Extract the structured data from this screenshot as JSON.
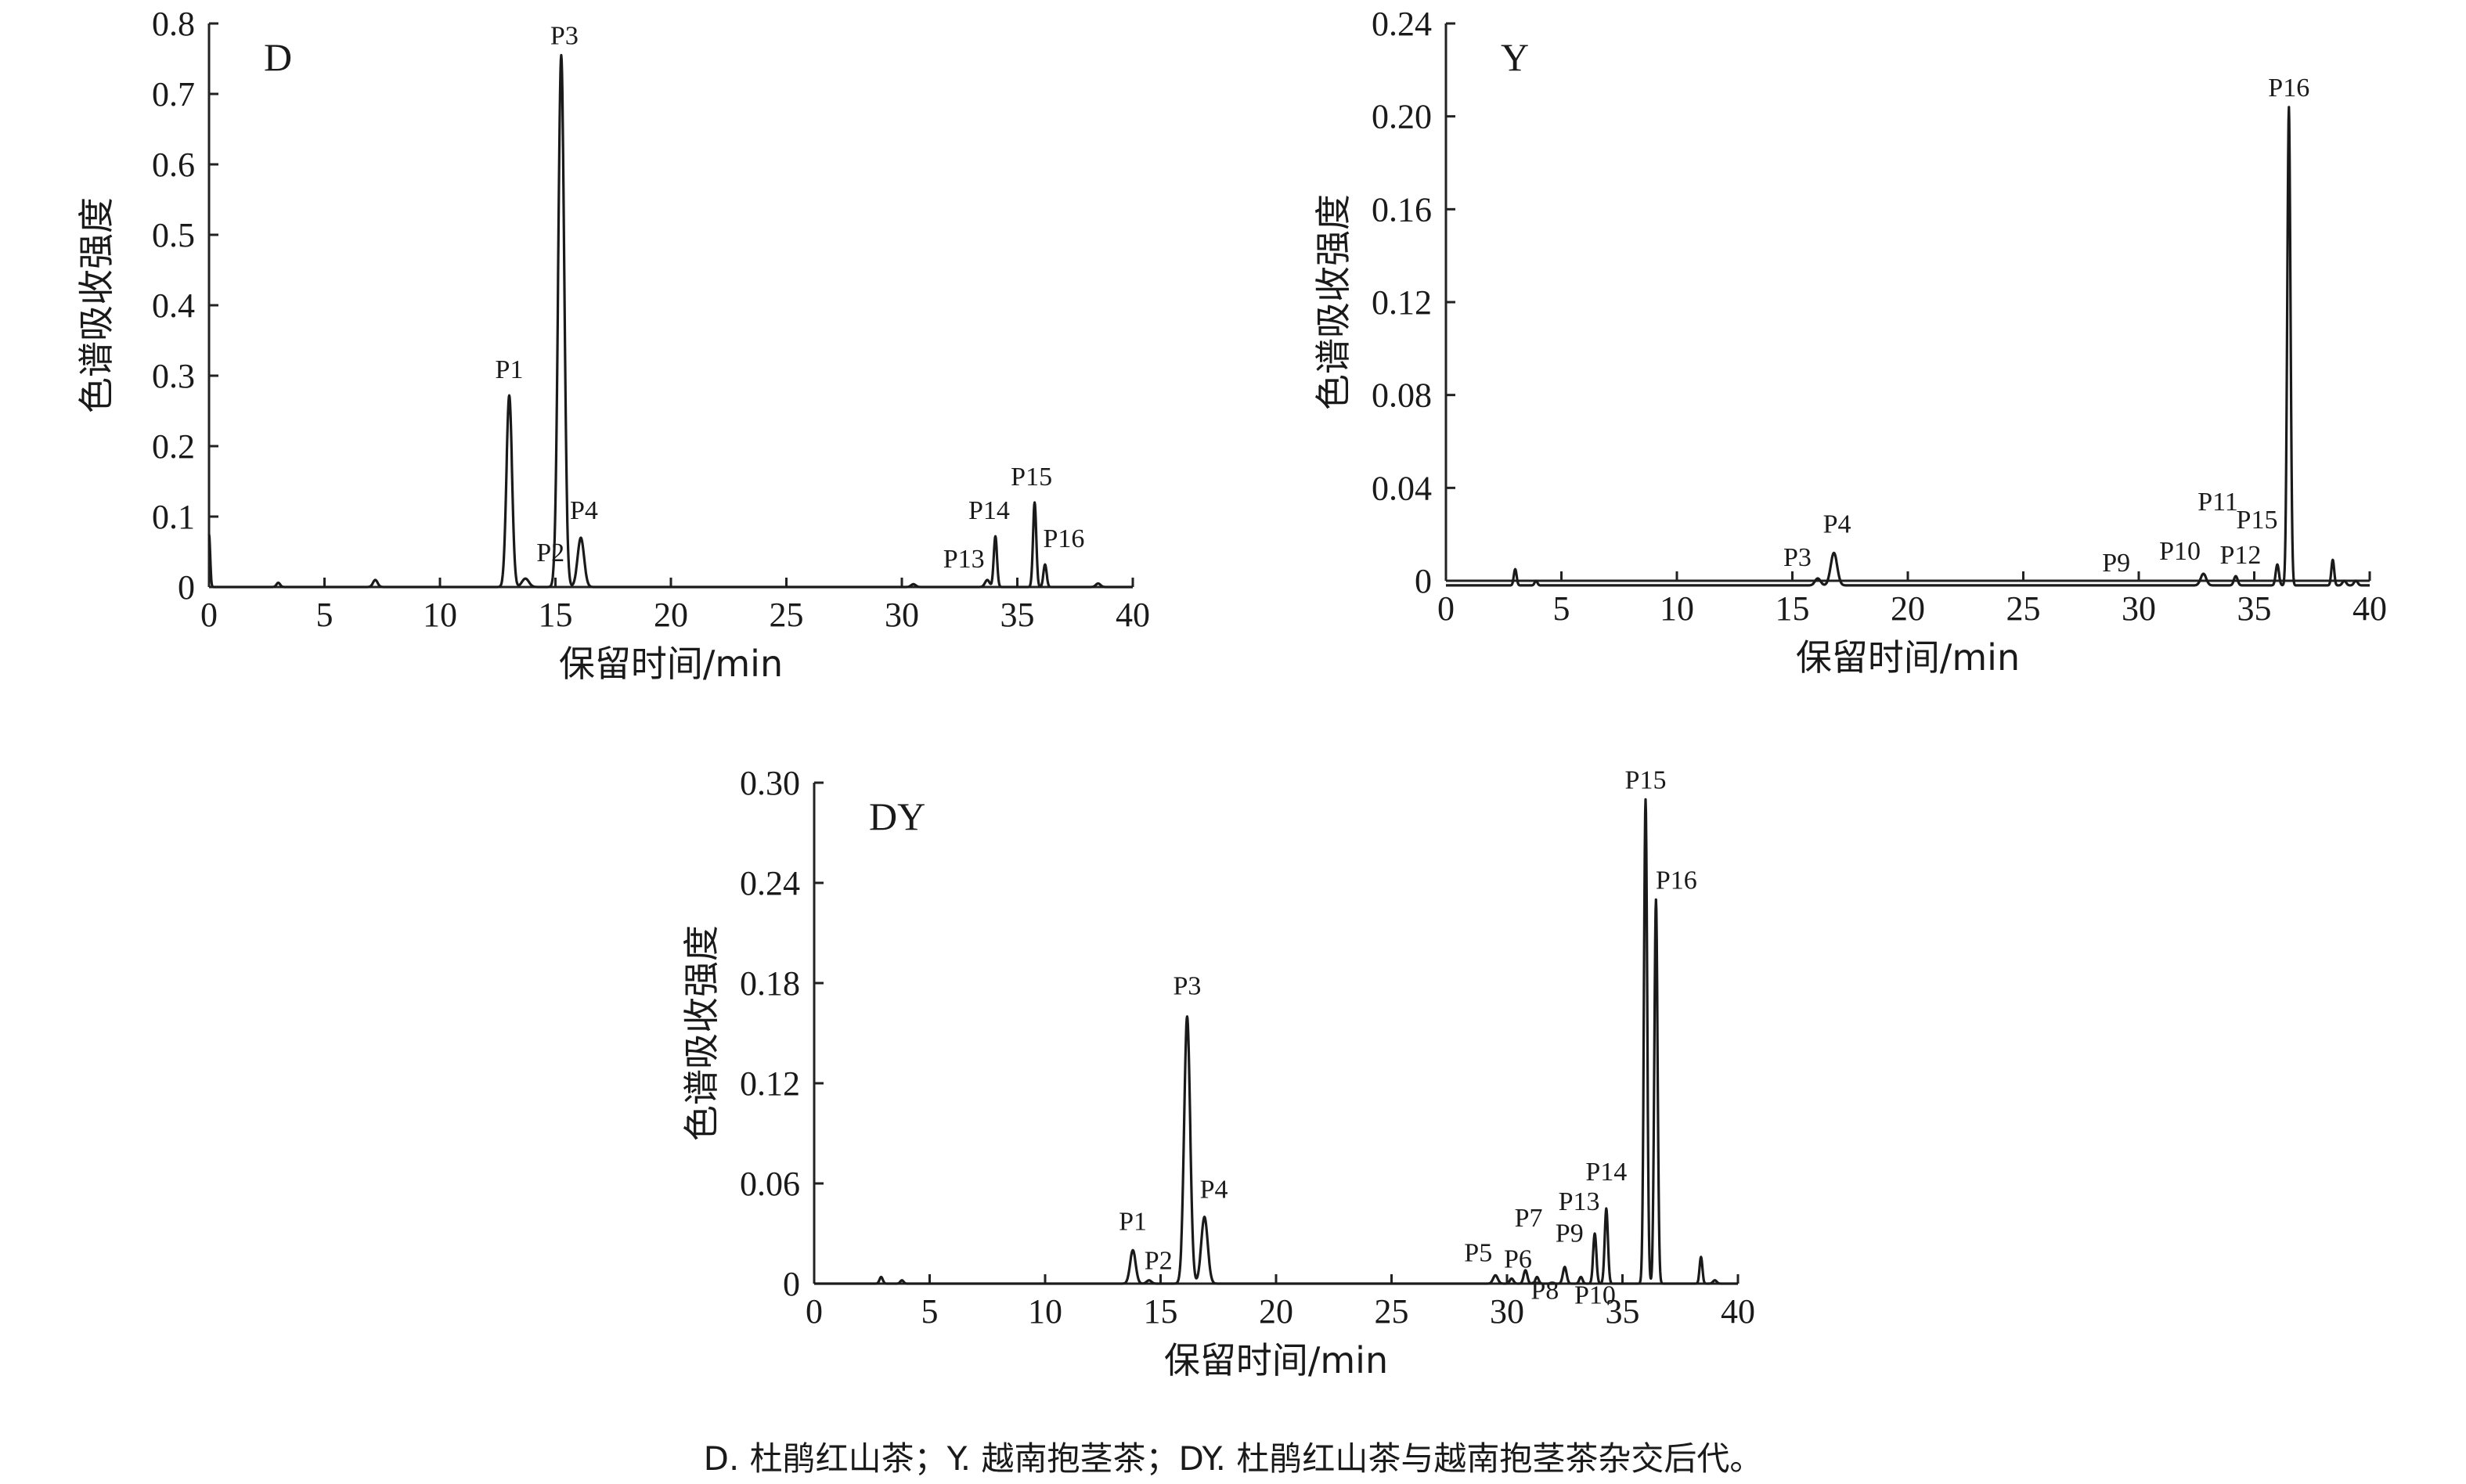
{
  "caption": "D. 杜鹃红山茶；Y. 越南抱茎茶；DY. 杜鹃红山茶与越南抱茎茶杂交后代。",
  "chart_data": [
    {
      "type": "line",
      "panel_label": "D",
      "xlabel": "保留时间/min",
      "ylabel": "色谱吸收强度",
      "xlim": [
        0,
        40
      ],
      "ylim": [
        0,
        0.8
      ],
      "xticks": [
        "0",
        "5",
        "10",
        "15",
        "20",
        "25",
        "30",
        "35",
        "40"
      ],
      "yticks": [
        "0",
        "0.1",
        "0.2",
        "0.3",
        "0.4",
        "0.5",
        "0.6",
        "0.7",
        "0.8"
      ],
      "baseline": 0,
      "peaks": [
        {
          "label": "P1",
          "x": 13.0,
          "y": 0.272,
          "w": 0.12
        },
        {
          "label": "P2",
          "x": 13.7,
          "y": 0.012,
          "w": 0.15
        },
        {
          "label": "P3",
          "x": 15.25,
          "y": 0.755,
          "w": 0.13
        },
        {
          "label": "P4",
          "x": 16.1,
          "y": 0.07,
          "w": 0.14
        },
        {
          "label": "P13",
          "x": 33.7,
          "y": 0.01,
          "w": 0.1
        },
        {
          "label": "P14",
          "x": 34.05,
          "y": 0.072,
          "w": 0.07
        },
        {
          "label": "P15",
          "x": 35.75,
          "y": 0.12,
          "w": 0.07
        },
        {
          "label": "P16",
          "x": 36.2,
          "y": 0.032,
          "w": 0.07
        }
      ],
      "minor_peaks": [
        {
          "x": 0.0,
          "y": 0.075,
          "w": 0.05
        },
        {
          "x": 3.0,
          "y": 0.006,
          "w": 0.08
        },
        {
          "x": 7.2,
          "y": 0.01,
          "w": 0.1
        },
        {
          "x": 30.5,
          "y": 0.004,
          "w": 0.1
        },
        {
          "x": 38.5,
          "y": 0.005,
          "w": 0.1
        }
      ]
    },
    {
      "type": "line",
      "panel_label": "Y",
      "xlabel": "保留时间/min",
      "ylabel": "色谱吸收强度",
      "xlim": [
        0,
        40
      ],
      "ylim": [
        0,
        0.24
      ],
      "xticks": [
        "0",
        "5",
        "10",
        "15",
        "20",
        "25",
        "30",
        "35",
        "40"
      ],
      "yticks": [
        "0",
        "0.04",
        "0.08",
        "0.12",
        "0.16",
        "0.20",
        "0.24"
      ],
      "baseline": -0.002,
      "peaks": [
        {
          "label": "P3",
          "x": 16.1,
          "y": 0.003,
          "w": 0.12
        },
        {
          "label": "P4",
          "x": 16.8,
          "y": 0.014,
          "w": 0.14
        },
        {
          "label": "P9",
          "x": 29.7,
          "y": 0.0,
          "w": 0.1
        },
        {
          "label": "P10",
          "x": 32.8,
          "y": 0.005,
          "w": 0.12
        },
        {
          "label": "P11",
          "x": 33.9,
          "y": 0.0,
          "w": 0.1
        },
        {
          "label": "P12",
          "x": 34.2,
          "y": 0.004,
          "w": 0.08
        },
        {
          "label": "P15",
          "x": 36.0,
          "y": 0.009,
          "w": 0.07
        },
        {
          "label": "P16",
          "x": 36.5,
          "y": 0.206,
          "w": 0.07
        }
      ],
      "minor_peaks": [
        {
          "x": 3.0,
          "y": 0.007,
          "w": 0.06
        },
        {
          "x": 3.9,
          "y": 0.002,
          "w": 0.06
        },
        {
          "x": 38.4,
          "y": 0.011,
          "w": 0.06
        },
        {
          "x": 38.9,
          "y": 0.002,
          "w": 0.08
        },
        {
          "x": 39.4,
          "y": 0.002,
          "w": 0.08
        }
      ]
    },
    {
      "type": "line",
      "panel_label": "DY",
      "xlabel": "保留时间/min",
      "ylabel": "色谱吸收强度",
      "xlim": [
        0,
        40
      ],
      "ylim": [
        0,
        0.3
      ],
      "xticks": [
        "0",
        "5",
        "10",
        "15",
        "20",
        "25",
        "30",
        "35",
        "40"
      ],
      "yticks": [
        "0",
        "0.06",
        "0.12",
        "0.18",
        "0.24",
        "0.30"
      ],
      "baseline": 0,
      "peaks": [
        {
          "label": "P1",
          "x": 13.8,
          "y": 0.02,
          "w": 0.12
        },
        {
          "label": "P2",
          "x": 14.5,
          "y": 0.002,
          "w": 0.1
        },
        {
          "label": "P3",
          "x": 16.15,
          "y": 0.16,
          "w": 0.13
        },
        {
          "label": "P4",
          "x": 16.9,
          "y": 0.04,
          "w": 0.14
        },
        {
          "label": "P5",
          "x": 29.5,
          "y": 0.005,
          "w": 0.1
        },
        {
          "label": "P6",
          "x": 30.2,
          "y": 0.003,
          "w": 0.08
        },
        {
          "label": "P7",
          "x": 30.8,
          "y": 0.008,
          "w": 0.08
        },
        {
          "label": "P8",
          "x": 31.3,
          "y": 0.004,
          "w": 0.07
        },
        {
          "label": "P9",
          "x": 32.5,
          "y": 0.01,
          "w": 0.08
        },
        {
          "label": "P10",
          "x": 33.2,
          "y": 0.004,
          "w": 0.07
        },
        {
          "label": "P13",
          "x": 33.8,
          "y": 0.03,
          "w": 0.07
        },
        {
          "label": "P14",
          "x": 34.3,
          "y": 0.045,
          "w": 0.07
        },
        {
          "label": "P15",
          "x": 36.0,
          "y": 0.29,
          "w": 0.07
        },
        {
          "label": "P16",
          "x": 36.45,
          "y": 0.23,
          "w": 0.07
        }
      ],
      "minor_peaks": [
        {
          "x": 2.9,
          "y": 0.004,
          "w": 0.07
        },
        {
          "x": 3.8,
          "y": 0.002,
          "w": 0.07
        },
        {
          "x": 38.4,
          "y": 0.016,
          "w": 0.06
        },
        {
          "x": 39.0,
          "y": 0.002,
          "w": 0.08
        }
      ]
    }
  ]
}
